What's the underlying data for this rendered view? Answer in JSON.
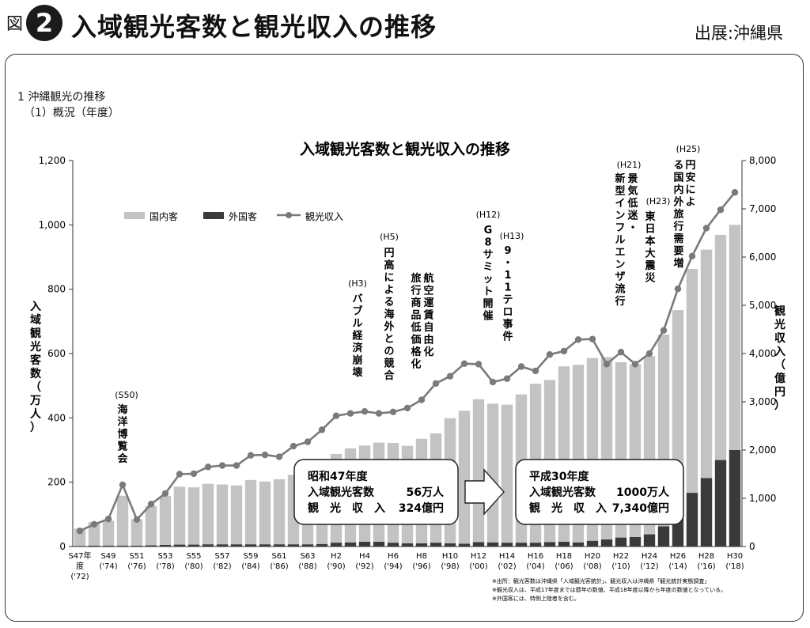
{
  "header": {
    "figure_prefix": "図",
    "figure_number": "2",
    "title": "入域観光客数と観光収入の推移",
    "source": "出展:沖縄県"
  },
  "section": {
    "heading": "1 沖縄観光の推移",
    "subheading": "（1）概況（年度）"
  },
  "chart_data": {
    "type": "bar",
    "title": "入域観光客数と観光収入の推移",
    "ylabel": "入域観光客数（万人）",
    "y2label": "観光収入（億円）",
    "ylim": [
      0,
      1200
    ],
    "y2lim": [
      0,
      8000
    ],
    "y_ticks": [
      "0",
      "200",
      "400",
      "600",
      "800",
      "1,000",
      "1,200"
    ],
    "y2_ticks": [
      "0",
      "1,000",
      "2,000",
      "3,000",
      "4,000",
      "5,000",
      "6,000",
      "7,000",
      "8,000"
    ],
    "grid": false,
    "legend_position": "top-left",
    "stacked": true,
    "categories": [
      "S47",
      "S48",
      "S49",
      "S50",
      "S51",
      "S52",
      "S53",
      "S54",
      "S55",
      "S56",
      "S57",
      "S58",
      "S59",
      "S60",
      "S61",
      "S62",
      "S63",
      "H1",
      "H2",
      "H3",
      "H4",
      "H5",
      "H6",
      "H7",
      "H8",
      "H9",
      "H10",
      "H11",
      "H12",
      "H13",
      "H14",
      "H15",
      "H16",
      "H17",
      "H18",
      "H19",
      "H20",
      "H21",
      "H22",
      "H23",
      "H24",
      "H25",
      "H26",
      "H27",
      "H28",
      "H29",
      "H30"
    ],
    "x_tick_labels": [
      {
        "idx": 0,
        "era": "S47年",
        "era2": "度",
        "year": "('72)"
      },
      {
        "idx": 2,
        "era": "S49",
        "year": "('74)"
      },
      {
        "idx": 4,
        "era": "S51",
        "year": "('76)"
      },
      {
        "idx": 6,
        "era": "S53",
        "year": "('78)"
      },
      {
        "idx": 8,
        "era": "S55",
        "year": "('80)"
      },
      {
        "idx": 10,
        "era": "S57",
        "year": "('82)"
      },
      {
        "idx": 12,
        "era": "S59",
        "year": "('84)"
      },
      {
        "idx": 14,
        "era": "S61",
        "year": "('86)"
      },
      {
        "idx": 16,
        "era": "S63",
        "year": "('88)"
      },
      {
        "idx": 18,
        "era": "H2",
        "year": "('90)"
      },
      {
        "idx": 20,
        "era": "H4",
        "year": "('92)"
      },
      {
        "idx": 22,
        "era": "H6",
        "year": "('94)"
      },
      {
        "idx": 24,
        "era": "H8",
        "year": "('96)"
      },
      {
        "idx": 26,
        "era": "H10",
        "year": "('98)"
      },
      {
        "idx": 28,
        "era": "H12",
        "year": "('00)"
      },
      {
        "idx": 30,
        "era": "H14",
        "year": "('02)"
      },
      {
        "idx": 32,
        "era": "H16",
        "year": "('04)"
      },
      {
        "idx": 34,
        "era": "H18",
        "year": "('06)"
      },
      {
        "idx": 36,
        "era": "H20",
        "year": "('08)"
      },
      {
        "idx": 38,
        "era": "H22",
        "year": "('10)"
      },
      {
        "idx": 40,
        "era": "H24",
        "year": "('12)"
      },
      {
        "idx": 42,
        "era": "H26",
        "year": "('14)"
      },
      {
        "idx": 44,
        "era": "H28",
        "year": "('16)"
      },
      {
        "idx": 46,
        "era": "H30",
        "year": "('18)"
      }
    ],
    "series": [
      {
        "name": "国内客",
        "color": "#c3c3c3",
        "values": [
          54,
          73,
          77,
          155,
          82,
          122,
          152,
          180,
          178,
          188,
          186,
          183,
          200,
          195,
          202,
          216,
          233,
          257,
          276,
          292,
          299,
          308,
          310,
          303,
          325,
          340,
          389,
          413,
          444,
          431,
          429,
          461,
          494,
          504,
          545,
          552,
          568,
          567,
          545,
          537,
          554,
          596,
          646,
          696,
          710,
          700,
          700
        ]
      },
      {
        "name": "外国客",
        "color": "#3a3a3a",
        "values": [
          2,
          3,
          3,
          3,
          3,
          4,
          5,
          6,
          6,
          7,
          7,
          7,
          7,
          7,
          7,
          7,
          7,
          8,
          12,
          13,
          15,
          15,
          12,
          10,
          10,
          12,
          10,
          9,
          14,
          13,
          12,
          12,
          12,
          14,
          15,
          13,
          18,
          22,
          28,
          30,
          38,
          63,
          89,
          167,
          213,
          269,
          300
        ]
      },
      {
        "name": "観光収入",
        "color": "#7a7a7a",
        "axis": "right",
        "values": [
          324,
          460,
          570,
          1280,
          560,
          880,
          1100,
          1500,
          1510,
          1650,
          1680,
          1680,
          1890,
          1900,
          1860,
          2080,
          2170,
          2420,
          2710,
          2760,
          2800,
          2760,
          2790,
          2870,
          3040,
          3380,
          3530,
          3790,
          3780,
          3410,
          3480,
          3730,
          3640,
          3980,
          4050,
          4290,
          4300,
          3780,
          4030,
          3780,
          4000,
          4480,
          5340,
          6020,
          6600,
          6980,
          7340
        ]
      }
    ],
    "annotations": [
      {
        "label": "(S50)",
        "text": "海洋博覧会"
      },
      {
        "label": "(H3)",
        "text": "バブル経済崩壊"
      },
      {
        "label": "(H5)",
        "text": "円高による海外との競合"
      },
      {
        "text": "航空運賃自由化旅行商品低価格化"
      },
      {
        "label": "(H12)",
        "text": "G8サミット開催"
      },
      {
        "label": "(H13)",
        "text": "9・11テロ事件"
      },
      {
        "label": "(H21)",
        "text": "景気低迷・新型インフルエンザ流行"
      },
      {
        "label": "(H23)",
        "text": "東日本大震災"
      },
      {
        "label": "(H25)",
        "text": "円安による国内外旅行需要増"
      }
    ],
    "callouts": [
      {
        "title": "昭和47年度",
        "row1_label": "入域観光客数",
        "row1_value": "56万人",
        "row2_label": "観　光　収　入",
        "row2_value": "324億円"
      },
      {
        "title": "平成30年度",
        "row1_label": "入域観光客数",
        "row1_value": "1000万人",
        "row2_label": "観　光　収　入",
        "row2_value": "7,340億円"
      }
    ],
    "notes": [
      "※出所：観光客数は沖縄県「入域観光客統計」、観光収入は沖縄県「観光統計実態調査」",
      "※観光収入は、平成17年度までは暦年の数値、平成18年度以降から年度の数値となっている。",
      "※外国客には、特例上陸者を含む。"
    ]
  }
}
